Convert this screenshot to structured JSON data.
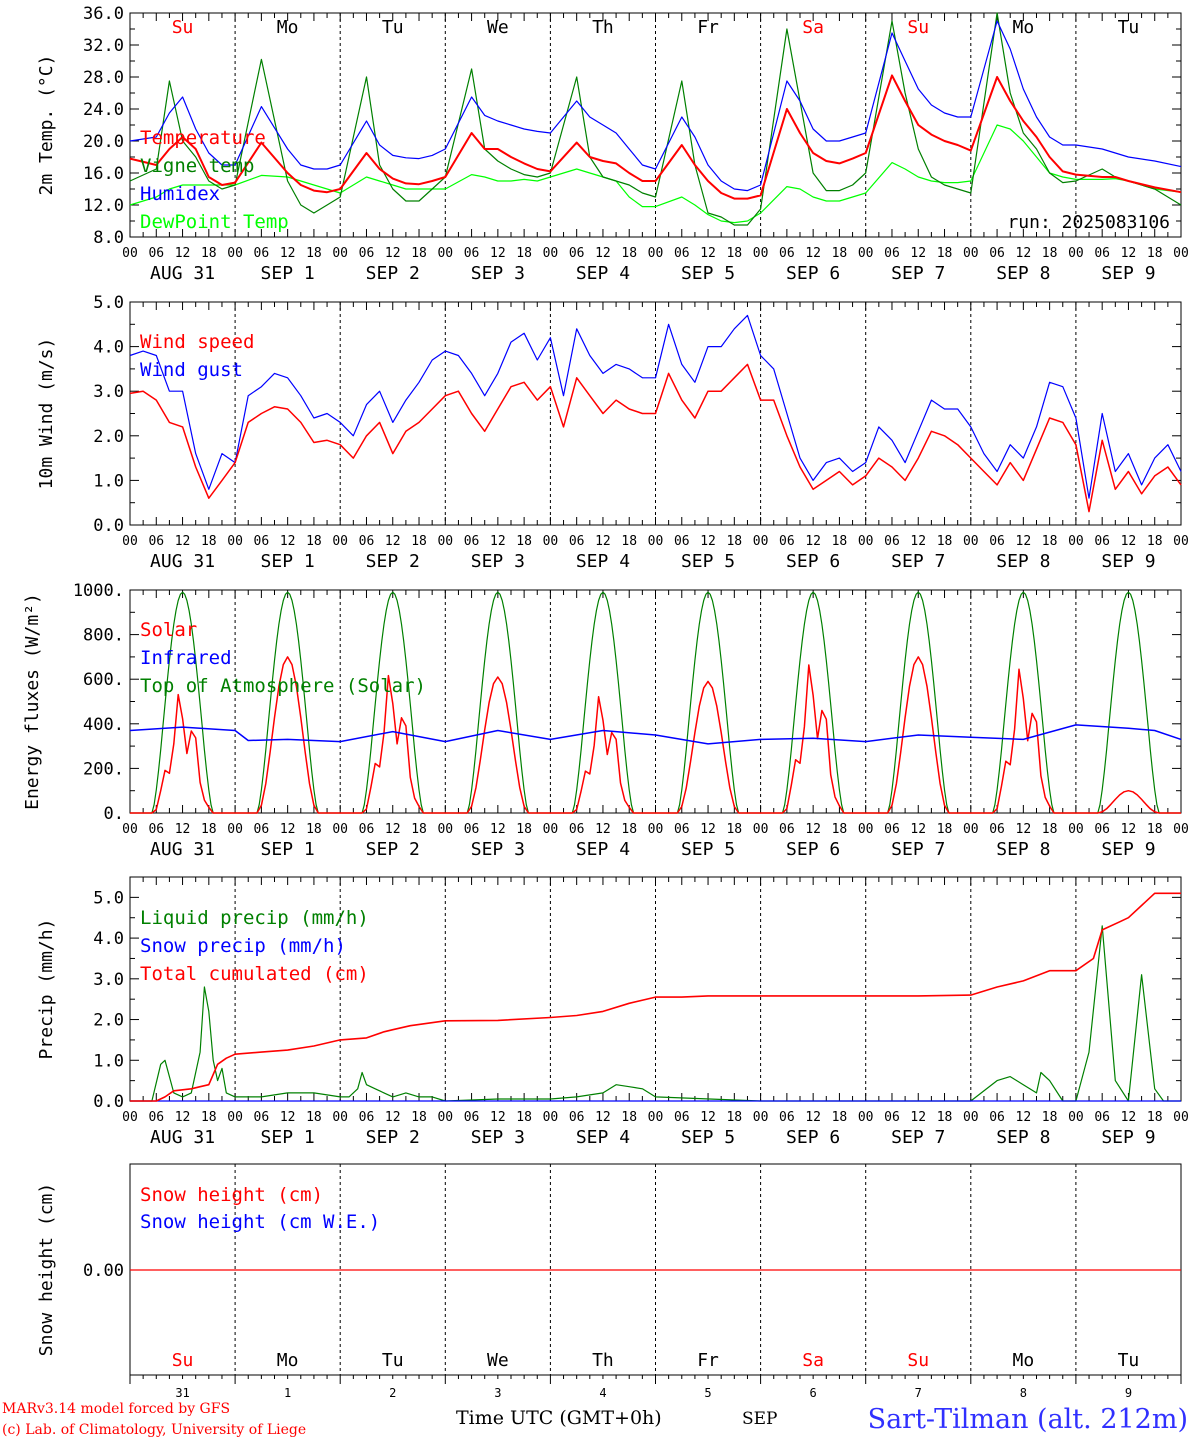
{
  "days_labels": [
    "AUG 31",
    "SEP 1",
    "SEP 2",
    "SEP 3",
    "SEP 4",
    "SEP 5",
    "SEP 6",
    "SEP 7",
    "SEP 8",
    "SEP 9"
  ],
  "weekdays": [
    {
      "label": "Su",
      "color": "#ff0000"
    },
    {
      "label": "Mo",
      "color": "#000000"
    },
    {
      "label": "Tu",
      "color": "#000000"
    },
    {
      "label": "We",
      "color": "#000000"
    },
    {
      "label": "Th",
      "color": "#000000"
    },
    {
      "label": "Fr",
      "color": "#000000"
    },
    {
      "label": "Sa",
      "color": "#ff0000"
    },
    {
      "label": "Su",
      "color": "#ff0000"
    },
    {
      "label": "Mo",
      "color": "#000000"
    },
    {
      "label": "Tu",
      "color": "#000000"
    }
  ],
  "hour_ticks": [
    "00",
    "06",
    "12",
    "18"
  ],
  "final_hour_tick": "00",
  "bottom_day_numbers": [
    "31",
    "1",
    "2",
    "3",
    "4",
    "5",
    "6",
    "7",
    "8",
    "9"
  ],
  "footer": {
    "model": "MARv3.14 model forced by GFS",
    "lab": "(c) Lab. of Climatology, University of Liege",
    "time_label": "Time UTC (GMT+0h)",
    "month": "SEP",
    "station": "Sart-Tilman (alt. 212m)"
  },
  "chart_data": [
    {
      "id": "temperature",
      "type": "line",
      "ylabel": "2m Temp. (°C)",
      "ylim": [
        8,
        36
      ],
      "yticks": [
        "8.0",
        "12.0",
        "16.0",
        "20.0",
        "24.0",
        "28.0",
        "32.0",
        "36.0"
      ],
      "annotation": "run: 2025083106",
      "x_hours": [
        0,
        6,
        9,
        12,
        15,
        18,
        21,
        24,
        30,
        36,
        39,
        42,
        45,
        48,
        54,
        57,
        60,
        63,
        66,
        69,
        72,
        78,
        81,
        84,
        87,
        90,
        93,
        96,
        102,
        105,
        108,
        111,
        114,
        117,
        120,
        126,
        129,
        132,
        135,
        138,
        141,
        144,
        150,
        153,
        156,
        159,
        162,
        165,
        168,
        174,
        177,
        180,
        183,
        186,
        189,
        192,
        198,
        201,
        204,
        207,
        210,
        213,
        216,
        222,
        225,
        228,
        234,
        240
      ],
      "series": [
        {
          "name": "Temperature",
          "color": "#ff0000",
          "values": [
            17.8,
            17.0,
            19.0,
            20.5,
            19.0,
            15.5,
            14.5,
            14.8,
            19.8,
            16.0,
            14.5,
            13.8,
            13.6,
            14.0,
            18.5,
            16.5,
            15.3,
            14.7,
            14.6,
            15.0,
            15.5,
            21.0,
            19.0,
            19.0,
            18.0,
            17.2,
            16.5,
            16.2,
            19.8,
            18.0,
            17.5,
            17.2,
            16.0,
            15.0,
            15.0,
            19.5,
            17.0,
            15.0,
            13.5,
            12.8,
            12.8,
            13.2,
            24.0,
            21.0,
            18.5,
            17.5,
            17.2,
            17.8,
            18.5,
            28.2,
            25.0,
            22.0,
            20.8,
            20.0,
            19.5,
            18.8,
            28.0,
            25.0,
            22.5,
            20.5,
            18.0,
            16.2,
            15.8,
            15.5,
            15.5,
            15.0,
            14.2,
            13.6
          ]
        },
        {
          "name": "Vigne temp",
          "color": "#008000",
          "values": [
            15.0,
            16.5,
            27.5,
            20.0,
            18.0,
            15.0,
            14.0,
            14.5,
            30.2,
            15.0,
            12.0,
            11.0,
            12.0,
            13.0,
            28.0,
            17.0,
            14.0,
            12.5,
            12.5,
            14.0,
            15.5,
            29.0,
            19.0,
            17.5,
            16.5,
            15.8,
            15.5,
            16.0,
            28.0,
            18.0,
            15.5,
            15.0,
            14.5,
            13.5,
            13.0,
            27.5,
            17.0,
            11.0,
            10.5,
            9.5,
            9.5,
            11.5,
            34.0,
            25.0,
            16.0,
            13.8,
            13.8,
            14.5,
            16.0,
            35.0,
            26.0,
            19.0,
            15.5,
            14.5,
            14.0,
            13.5,
            36.0,
            26.0,
            21.0,
            19.0,
            16.0,
            14.8,
            15.0,
            16.5,
            15.5,
            15.0,
            14.0,
            12.0
          ]
        },
        {
          "name": "Humidex",
          "color": "#0000ff",
          "values": [
            20.0,
            20.5,
            23.5,
            25.5,
            21.5,
            18.5,
            17.0,
            17.0,
            24.3,
            19.0,
            17.0,
            16.5,
            16.5,
            17.0,
            22.5,
            19.5,
            18.2,
            17.9,
            17.8,
            18.2,
            19.0,
            25.5,
            23.2,
            22.5,
            22.0,
            21.5,
            21.2,
            21.0,
            25.0,
            23.0,
            22.0,
            21.0,
            19.0,
            17.0,
            16.5,
            23.0,
            20.5,
            17.0,
            15.0,
            14.0,
            13.8,
            14.5,
            27.5,
            25.0,
            21.5,
            20.0,
            20.0,
            20.5,
            21.0,
            33.5,
            30.0,
            26.5,
            24.5,
            23.5,
            23.0,
            23.0,
            35.0,
            31.5,
            26.5,
            23.0,
            20.5,
            19.5,
            19.5,
            19.0,
            18.5,
            18.0,
            17.5,
            16.8
          ]
        },
        {
          "name": "DewPoint Temp",
          "color": "#00ff00",
          "values": [
            12.0,
            13.0,
            14.0,
            14.5,
            14.5,
            14.5,
            14.5,
            14.5,
            15.7,
            15.5,
            15.0,
            14.5,
            14.0,
            13.5,
            15.5,
            15.0,
            14.5,
            14.0,
            14.0,
            14.0,
            14.0,
            15.8,
            15.5,
            15.0,
            15.0,
            15.2,
            15.0,
            15.5,
            16.5,
            16.0,
            15.5,
            15.0,
            13.0,
            11.8,
            11.8,
            13.0,
            12.0,
            10.8,
            10.0,
            9.8,
            10.0,
            11.0,
            14.3,
            14.0,
            13.0,
            12.5,
            12.5,
            13.0,
            13.5,
            17.3,
            16.5,
            15.5,
            15.0,
            14.8,
            14.8,
            15.0,
            22.0,
            21.5,
            20.0,
            18.0,
            16.0,
            15.5,
            15.2,
            15.2,
            15.3,
            15.0,
            14.0,
            13.6
          ]
        }
      ]
    },
    {
      "id": "wind",
      "type": "line",
      "ylabel": "10m Wind (m/s)",
      "ylim": [
        0,
        5
      ],
      "yticks": [
        "0.0",
        "1.0",
        "2.0",
        "3.0",
        "4.0",
        "5.0"
      ],
      "x_hours": [
        0,
        3,
        6,
        9,
        12,
        15,
        18,
        21,
        24,
        27,
        30,
        33,
        36,
        39,
        42,
        45,
        48,
        51,
        54,
        57,
        60,
        63,
        66,
        69,
        72,
        75,
        78,
        81,
        84,
        87,
        90,
        93,
        96,
        99,
        102,
        105,
        108,
        111,
        114,
        117,
        120,
        123,
        126,
        129,
        132,
        135,
        138,
        141,
        144,
        147,
        150,
        153,
        156,
        159,
        162,
        165,
        168,
        171,
        174,
        177,
        180,
        183,
        186,
        189,
        192,
        195,
        198,
        201,
        204,
        207,
        210,
        213,
        216,
        219,
        222,
        225,
        228,
        231,
        234,
        237,
        240
      ],
      "series": [
        {
          "name": "Wind speed",
          "color": "#ff0000",
          "values": [
            2.95,
            3.0,
            2.8,
            2.3,
            2.2,
            1.3,
            0.6,
            1.0,
            1.4,
            2.3,
            2.5,
            2.65,
            2.6,
            2.3,
            1.85,
            1.9,
            1.8,
            1.5,
            2.0,
            2.3,
            1.6,
            2.1,
            2.3,
            2.6,
            2.9,
            3.0,
            2.5,
            2.1,
            2.6,
            3.1,
            3.2,
            2.8,
            3.1,
            2.2,
            3.3,
            2.9,
            2.5,
            2.8,
            2.6,
            2.5,
            2.5,
            3.4,
            2.8,
            2.4,
            3.0,
            3.0,
            3.3,
            3.6,
            2.8,
            2.8,
            2.0,
            1.3,
            0.8,
            1.0,
            1.2,
            0.9,
            1.1,
            1.5,
            1.3,
            1.0,
            1.5,
            2.1,
            2.0,
            1.8,
            1.5,
            1.2,
            0.9,
            1.4,
            1.0,
            1.7,
            2.4,
            2.3,
            1.8,
            0.3,
            1.9,
            0.8,
            1.2,
            0.7,
            1.1,
            1.3,
            0.9
          ]
        },
        {
          "name": "Wind gust",
          "color": "#0000ff",
          "values": [
            3.8,
            3.9,
            3.8,
            3.0,
            3.0,
            1.6,
            0.8,
            1.6,
            1.4,
            2.9,
            3.1,
            3.4,
            3.3,
            2.9,
            2.4,
            2.5,
            2.3,
            2.0,
            2.7,
            3.0,
            2.3,
            2.8,
            3.2,
            3.7,
            3.9,
            3.8,
            3.4,
            2.9,
            3.4,
            4.1,
            4.3,
            3.7,
            4.2,
            2.9,
            4.4,
            3.8,
            3.4,
            3.6,
            3.5,
            3.3,
            3.3,
            4.5,
            3.6,
            3.2,
            4.0,
            4.0,
            4.4,
            4.7,
            3.8,
            3.5,
            2.5,
            1.5,
            1.0,
            1.4,
            1.5,
            1.2,
            1.4,
            2.2,
            1.9,
            1.4,
            2.1,
            2.8,
            2.6,
            2.6,
            2.2,
            1.6,
            1.2,
            1.8,
            1.5,
            2.2,
            3.2,
            3.1,
            2.4,
            0.6,
            2.5,
            1.2,
            1.6,
            0.9,
            1.5,
            1.8,
            1.2
          ]
        }
      ]
    },
    {
      "id": "energy",
      "type": "line",
      "ylabel": "Energy fluxes (W/m²)",
      "ylim": [
        0,
        1000
      ],
      "yticks": [
        "0.",
        "200.",
        "400.",
        "600.",
        "800.",
        "1000."
      ],
      "daily_solar_peaks": [
        560,
        700,
        650,
        610,
        550,
        590,
        700,
        700,
        680,
        100
      ],
      "series": [
        {
          "name": "Solar",
          "color": "#ff0000"
        },
        {
          "name": "Infrared",
          "color": "#0000ff",
          "x_hours": [
            0,
            12,
            24,
            27,
            36,
            48,
            60,
            72,
            84,
            96,
            108,
            120,
            132,
            144,
            156,
            168,
            180,
            192,
            204,
            216,
            228,
            234,
            240
          ],
          "values": [
            370,
            385,
            370,
            325,
            330,
            320,
            365,
            320,
            370,
            330,
            370,
            350,
            310,
            330,
            335,
            320,
            350,
            340,
            330,
            395,
            380,
            370,
            330
          ]
        },
        {
          "name": "Top of Atmosphere (Solar)",
          "color": "#008000"
        }
      ]
    },
    {
      "id": "precip",
      "type": "line",
      "ylabel": "Precip (mm/h)",
      "ylim": [
        0,
        5.5
      ],
      "yticks": [
        "0.0",
        "1.0",
        "2.0",
        "3.0",
        "4.0",
        "5.0"
      ],
      "series": [
        {
          "name": "Liquid precip (mm/h)",
          "color": "#008000",
          "x_hours": [
            0,
            5,
            7,
            8,
            10,
            12,
            14,
            16,
            17,
            18,
            19,
            20,
            21,
            22,
            24,
            26,
            30,
            36,
            42,
            48,
            50,
            52,
            53,
            54,
            56,
            58,
            60,
            63,
            66,
            69,
            72,
            84,
            96,
            102,
            108,
            111,
            114,
            117,
            120,
            144,
            168,
            192,
            198,
            201,
            204,
            207,
            208,
            210,
            213,
            216,
            219,
            222,
            225,
            228,
            231,
            234,
            236,
            240
          ],
          "values": [
            0,
            0,
            0.9,
            1.0,
            0.2,
            0.1,
            0.2,
            1.2,
            2.8,
            2.2,
            1.0,
            0.5,
            0.8,
            0.2,
            0.1,
            0.1,
            0.1,
            0.2,
            0.2,
            0.1,
            0.1,
            0.3,
            0.7,
            0.4,
            0.3,
            0.2,
            0.1,
            0.2,
            0.1,
            0.1,
            0,
            0.05,
            0.05,
            0.1,
            0.2,
            0.4,
            0.35,
            0.3,
            0.1,
            0,
            0,
            0,
            0.5,
            0.6,
            0.4,
            0.2,
            0.7,
            0.5,
            0,
            0,
            1.2,
            4.3,
            0.5,
            0,
            3.1,
            0.3,
            0,
            0
          ]
        },
        {
          "name": "Snow precip (mm/h)",
          "color": "#0000ff",
          "x_hours": [
            0,
            240
          ],
          "values": [
            0,
            0
          ]
        },
        {
          "name": "Total cumulated (cm)",
          "color": "#ff0000",
          "x_hours": [
            0,
            6,
            8,
            10,
            14,
            16,
            18,
            20,
            22,
            24,
            30,
            36,
            42,
            48,
            54,
            58,
            60,
            64,
            72,
            84,
            96,
            102,
            108,
            114,
            120,
            126,
            132,
            144,
            156,
            168,
            180,
            192,
            198,
            204,
            210,
            216,
            220,
            222,
            226,
            228,
            234,
            240
          ],
          "values": [
            0,
            0,
            0.1,
            0.25,
            0.3,
            0.35,
            0.4,
            0.9,
            1.05,
            1.15,
            1.2,
            1.25,
            1.35,
            1.5,
            1.55,
            1.7,
            1.75,
            1.85,
            1.97,
            1.98,
            2.05,
            2.1,
            2.2,
            2.4,
            2.55,
            2.55,
            2.58,
            2.58,
            2.58,
            2.58,
            2.58,
            2.6,
            2.8,
            2.95,
            3.2,
            3.2,
            3.5,
            4.2,
            4.4,
            4.5,
            5.1,
            5.1
          ]
        }
      ]
    },
    {
      "id": "snow",
      "type": "line",
      "ylabel": "Snow height (cm)",
      "yticks": [
        "0.00"
      ],
      "series": [
        {
          "name": "Snow height (cm)",
          "color": "#ff0000",
          "x_hours": [
            0,
            240
          ],
          "values": [
            0,
            0
          ]
        },
        {
          "name": "Snow height (cm W.E.)",
          "color": "#0000ff",
          "x_hours": [
            0,
            240
          ],
          "values": [
            0,
            0
          ]
        }
      ]
    }
  ]
}
